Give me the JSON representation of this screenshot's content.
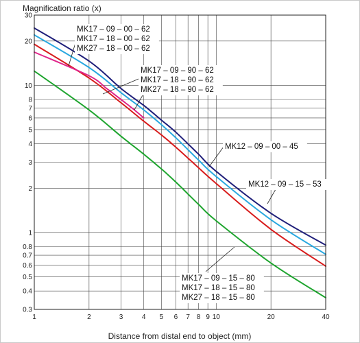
{
  "chart_data": {
    "type": "line",
    "ylabel": "Magnification ratio (x)",
    "xlabel": "Distance from distal end to object (mm)",
    "x_scale": "log",
    "y_scale": "log",
    "xlim": [
      1,
      40
    ],
    "ylim": [
      0.3,
      30
    ],
    "grid": true,
    "x_ticks": [
      1,
      2,
      3,
      4,
      5,
      6,
      7,
      8,
      9,
      10,
      20,
      40
    ],
    "y_ticks": [
      0.3,
      0.4,
      0.5,
      0.6,
      0.7,
      0.8,
      1,
      2,
      3,
      4,
      5,
      6,
      7,
      8,
      10,
      20,
      30
    ],
    "series": [
      {
        "color": "#1f1f7a",
        "points": [
          [
            1,
            24.5
          ],
          [
            2,
            14.6
          ],
          [
            3,
            9.5
          ],
          [
            4,
            7.3
          ],
          [
            5,
            5.8
          ],
          [
            6,
            4.8
          ],
          [
            8,
            3.4
          ],
          [
            10,
            2.6
          ],
          [
            20,
            1.35
          ],
          [
            40,
            0.82
          ]
        ]
      },
      {
        "color": "#29a8e0",
        "points": [
          [
            1,
            22.0
          ],
          [
            2,
            13.2
          ],
          [
            3,
            8.9
          ],
          [
            4,
            6.8
          ],
          [
            5,
            5.4
          ],
          [
            6,
            4.4
          ],
          [
            8,
            3.1
          ],
          [
            10,
            2.4
          ],
          [
            20,
            1.22
          ],
          [
            40,
            0.71
          ]
        ]
      },
      {
        "color": "#d81c1c",
        "points": [
          [
            1,
            19.0
          ],
          [
            2,
            11.2
          ],
          [
            3,
            7.6
          ],
          [
            4,
            5.7
          ],
          [
            5,
            4.6
          ],
          [
            6,
            3.8
          ],
          [
            8,
            2.75
          ],
          [
            10,
            2.15
          ],
          [
            20,
            1.05
          ],
          [
            40,
            0.59
          ]
        ]
      },
      {
        "color": "#e0248a",
        "points": [
          [
            1,
            16.8
          ],
          [
            2,
            11.6
          ],
          [
            2.5,
            9.5
          ],
          [
            3,
            8.0
          ],
          [
            3.5,
            6.9
          ],
          [
            4,
            6.0
          ]
        ]
      },
      {
        "color": "#1fa52f",
        "points": [
          [
            1,
            12.5
          ],
          [
            2,
            6.8
          ],
          [
            3,
            4.5
          ],
          [
            4,
            3.4
          ],
          [
            5,
            2.7
          ],
          [
            6,
            2.2
          ],
          [
            8,
            1.55
          ],
          [
            10,
            1.2
          ],
          [
            20,
            0.62
          ],
          [
            40,
            0.36
          ]
        ]
      }
    ],
    "annotations": [
      {
        "group": "mk-62-00",
        "lines": [
          "MK17 – 09 – 00 – 62",
          "MK17 – 18 – 00 – 62",
          "MK27 – 18 – 00 – 62"
        ]
      },
      {
        "group": "mk-62-90",
        "lines": [
          "MK17 – 09 – 90 – 62",
          "MK17 – 18 – 90 – 62",
          "MK27 – 18 – 90 – 62"
        ]
      },
      {
        "group": "mk12-00-45",
        "lines": [
          "MK12 – 09 – 00 – 45"
        ]
      },
      {
        "group": "mk12-15-53",
        "lines": [
          "MK12 – 09 – 15 – 53"
        ]
      },
      {
        "group": "mk-15-80",
        "lines": [
          "MK17 – 09 – 15 – 80",
          "MK17 – 18 – 15 – 80",
          "MK27 – 18 – 15 – 80"
        ]
      }
    ]
  }
}
